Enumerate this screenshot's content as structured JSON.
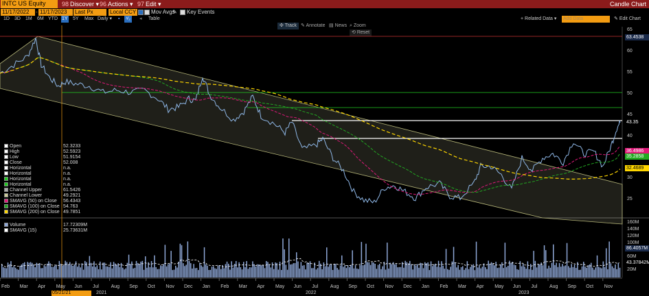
{
  "header": {
    "ticker": "INTC US Equity",
    "menus": [
      {
        "num": "98",
        "label": "Discover"
      },
      {
        "num": "96",
        "label": "Actions"
      },
      {
        "num": "97",
        "label": "Edit"
      }
    ],
    "chart_name": "Candle Chart"
  },
  "controls": {
    "start_date": "11/17/2022",
    "end_date": "11/17/2023",
    "field": "Last Px",
    "currency": "Local CCY",
    "mov_avgs_label": "Mov Avgs",
    "key_events_label": "Key Events",
    "periods": [
      "1D",
      "3D",
      "1M",
      "6M",
      "YTD",
      "1Y",
      "5Y",
      "Max"
    ],
    "active_period": "1Y",
    "frequency": "Daily",
    "table_label": "Table",
    "related_data": "Related Data",
    "add_data_placeholder": "Add Data",
    "edit_chart": "Edit Chart"
  },
  "toolbar": {
    "track": "Track",
    "annotate": "Annotate",
    "news": "News",
    "zoom": "Zoom",
    "reset": "Reset"
  },
  "legend_price": [
    {
      "label": "Open",
      "value": "52.3233",
      "color": "#ffffff"
    },
    {
      "label": "High",
      "value": "52.5923",
      "color": "#ffffff"
    },
    {
      "label": "Low",
      "value": "51.9154",
      "color": "#ffffff"
    },
    {
      "label": "Close",
      "value": "52.008",
      "color": "#ffffff"
    },
    {
      "label": "Horizontal",
      "value": "n.a.",
      "color": "#ffffff"
    },
    {
      "label": "Horizontal",
      "value": "n.a.",
      "color": "#ffffff"
    },
    {
      "label": "Horizontal",
      "value": "n.a.",
      "color": "#22cc22"
    },
    {
      "label": "Horizontal",
      "value": "n.a.",
      "color": "#22cc22"
    },
    {
      "label": "Channel Upper",
      "value": "61.5426",
      "color": "#aaaaaa"
    },
    {
      "label": "Channel Lower",
      "value": "49.2921",
      "color": "#cccc99"
    },
    {
      "label": "SMAVG (50)  on Close",
      "value": "56.4343",
      "color": "#e0197a"
    },
    {
      "label": "SMAVG (100)  on Close",
      "value": "54.763",
      "color": "#22aa22"
    },
    {
      "label": "SMAVG (200)  on Close",
      "value": "49.7851",
      "color": "#ffd700"
    }
  ],
  "legend_volume": [
    {
      "label": "Volume",
      "value": "17.72309M",
      "color": "#8fa8d8"
    },
    {
      "label": "SMAVG (15)",
      "value": "25.73631M",
      "color": "#ffffff"
    }
  ],
  "price_axis": {
    "ticks": [
      "65",
      "60",
      "55",
      "50",
      "45",
      "40",
      "35",
      "30",
      "25"
    ],
    "tags": [
      {
        "value": "63.4538",
        "color": "#1a2a4a",
        "text_color": "#ffffff"
      },
      {
        "value": "43.35",
        "color": "#000000",
        "text_color": "#ffffff"
      },
      {
        "value": "36.4986",
        "color": "#e0197a",
        "text_color": "#ffffff"
      },
      {
        "value": "35.2858",
        "color": "#22aa22",
        "text_color": "#ffffff"
      },
      {
        "value": "32.4689",
        "color": "#ffd700",
        "text_color": "#000000"
      }
    ]
  },
  "volume_axis": {
    "ticks": [
      "160M",
      "140M",
      "120M",
      "100M",
      "80M",
      "60M",
      "40M",
      "20M"
    ],
    "tags": [
      {
        "value": "86.4057M",
        "color": "#1a2a4a",
        "text_color": "#ffffff"
      },
      {
        "value": "43.37842M",
        "color": "#000000",
        "text_color": "#ffffff"
      }
    ]
  },
  "x_axis": {
    "months": [
      "Feb",
      "Mar",
      "Apr",
      "May",
      "Jun",
      "Jul",
      "Aug",
      "Sep",
      "Oct",
      "Nov",
      "Dec",
      "Jan",
      "Feb",
      "Mar",
      "Apr",
      "May",
      "Jun",
      "Jul",
      "Aug",
      "Sep",
      "Oct",
      "Nov",
      "Dec",
      "Jan",
      "Feb",
      "Mar",
      "Apr",
      "May",
      "Jun",
      "Jul",
      "Aug",
      "Sep",
      "Oct",
      "Nov"
    ],
    "years": [
      "2021",
      "2022",
      "2023"
    ],
    "cursor_date": "05/21/21"
  },
  "chart_data": {
    "type": "candlestick",
    "symbol": "INTC US Equity",
    "ylim": [
      21,
      66
    ],
    "horizontal_lines": [
      63.4538,
      49.8,
      46.5,
      43.35,
      39.1
    ],
    "moving_averages": [
      "SMAVG (50)",
      "SMAVG (100)",
      "SMAVG (200)"
    ],
    "last_close": 43.35
  }
}
